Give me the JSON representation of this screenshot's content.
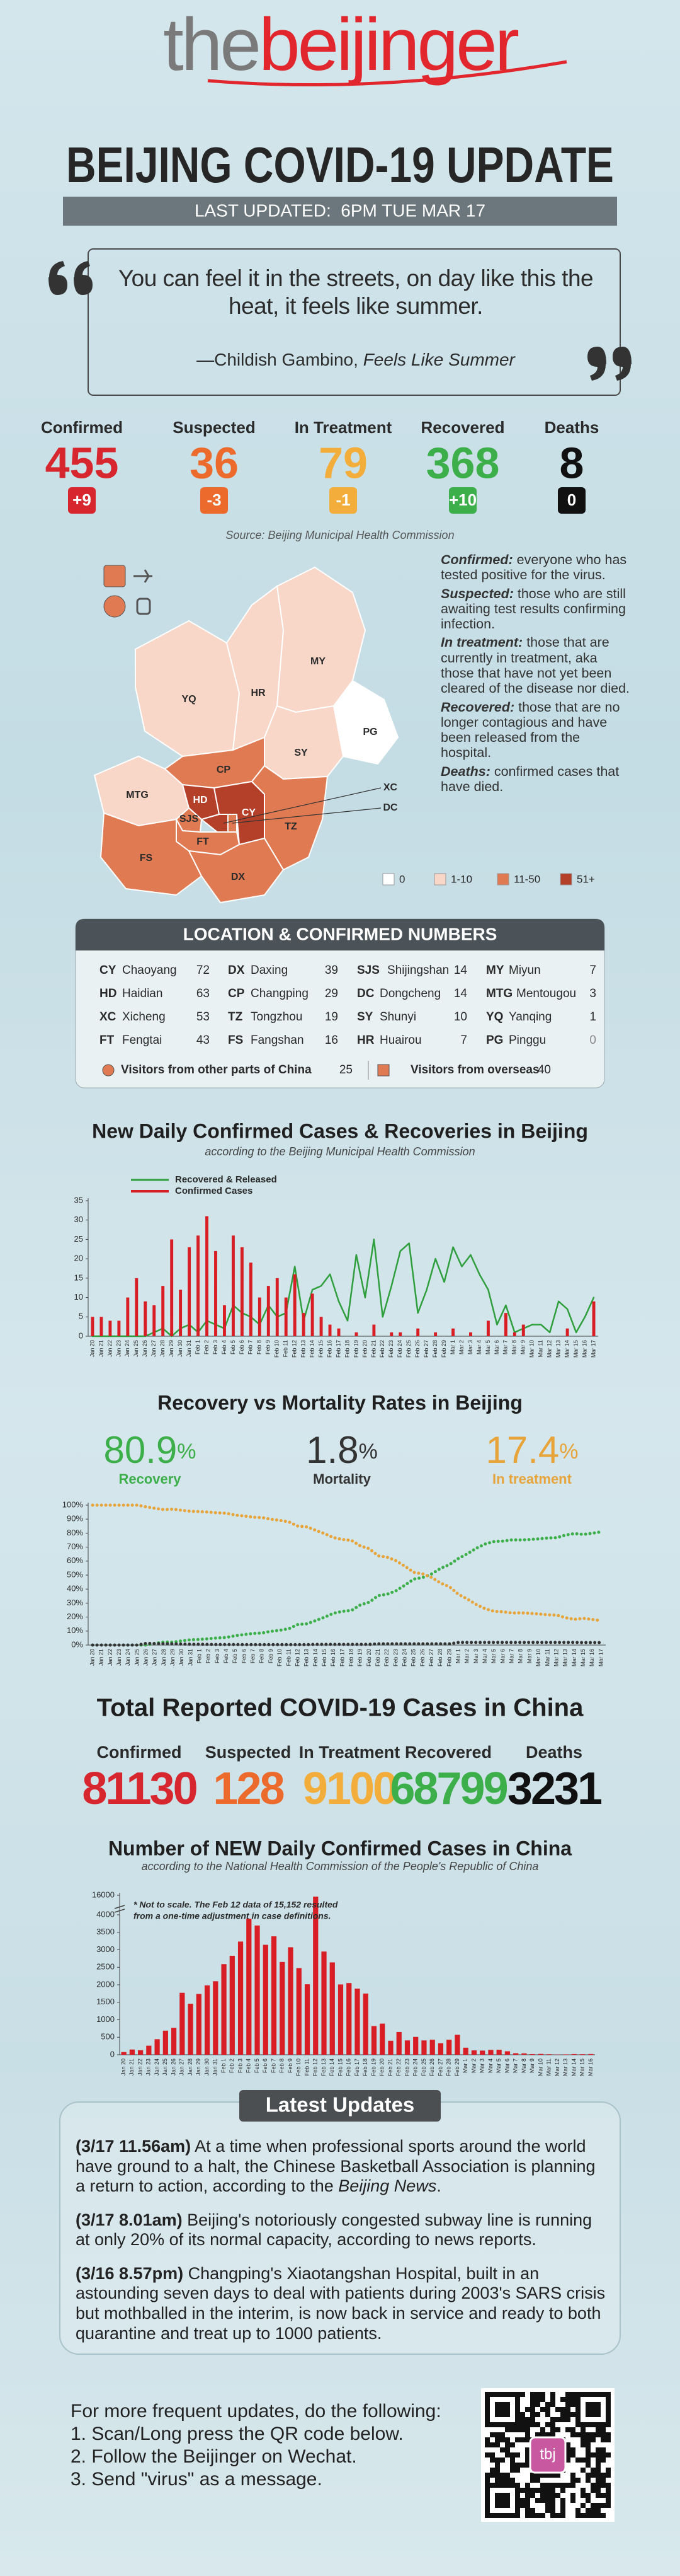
{
  "header": {
    "logo_prefix": "the",
    "logo_main": "beijinger",
    "title": "BEIJING COVID-19 UPDATE",
    "last_updated": "LAST UPDATED:  6PM TUE MAR 17"
  },
  "quote": {
    "text": "You can feel it in the streets, on day like this the heat, it feels like summer.",
    "attribution": "—Childish Gambino, ",
    "work": "Feels Like Summer"
  },
  "beijing_stats": [
    {
      "label": "Confirmed",
      "value": 455,
      "change": "+9",
      "color": "#d7262e",
      "badge": "#d7262e"
    },
    {
      "label": "Suspected",
      "value": 36,
      "change": "-3",
      "color": "#ec6a2c",
      "badge": "#ec6a2c"
    },
    {
      "label": "In Treatment",
      "value": 79,
      "change": "-1",
      "color": "#f2ad3a",
      "badge": "#f2ad3a"
    },
    {
      "label": "Recovered",
      "value": 368,
      "change": "+10",
      "color": "#3cae4a",
      "badge": "#3cae4a"
    },
    {
      "label": "Deaths",
      "value": 8,
      "change": "0",
      "color": "#111111",
      "badge": "#111111"
    }
  ],
  "source": "Source: Beijing Municipal Health Commission",
  "map": {
    "districts": [
      {
        "code": "YQ",
        "color": "#f8d6c8"
      },
      {
        "code": "HR",
        "color": "#f8d6c8"
      },
      {
        "code": "MY",
        "color": "#f8d6c8"
      },
      {
        "code": "PG",
        "color": "#ffffff"
      },
      {
        "code": "SY",
        "color": "#f8d6c8"
      },
      {
        "code": "CP",
        "color": "#e07a52"
      },
      {
        "code": "MTG",
        "color": "#f8d6c8"
      },
      {
        "code": "HD",
        "color": "#b4402a"
      },
      {
        "code": "SJS",
        "color": "#e07a52"
      },
      {
        "code": "XC",
        "color": "#b4402a"
      },
      {
        "code": "DC",
        "color": "#e07a52"
      },
      {
        "code": "CY",
        "color": "#b4402a"
      },
      {
        "code": "FT",
        "color": "#e07a52"
      },
      {
        "code": "TZ",
        "color": "#e07a52"
      },
      {
        "code": "FS",
        "color": "#e07a52"
      },
      {
        "code": "DX",
        "color": "#e07a52"
      }
    ],
    "legend": [
      {
        "label": "0",
        "color": "#ffffff"
      },
      {
        "label": "1-10",
        "color": "#f8d6c8"
      },
      {
        "label": "11-50",
        "color": "#e07a52"
      },
      {
        "label": "51+",
        "color": "#b4402a"
      }
    ]
  },
  "definitions": [
    {
      "term": "Confirmed:",
      "text": "everyone who has tested positive for the virus."
    },
    {
      "term": "Suspected:",
      "text": "those who are still awaiting test results confirming infection."
    },
    {
      "term": "In treatment:",
      "text": "those that are currently in treatment, aka those that have not yet been cleared of the disease nor died."
    },
    {
      "term": "Recovered:",
      "text": "those that are no longer contagious and have been released from the hospital."
    },
    {
      "term": "Deaths:",
      "text": "confirmed cases that have died."
    }
  ],
  "locations": {
    "title": "LOCATION & CONFIRMED NUMBERS",
    "rows": [
      {
        "code": "CY",
        "name": "Chaoyang",
        "value": 72
      },
      {
        "code": "HD",
        "name": "Haidian",
        "value": 63
      },
      {
        "code": "XC",
        "name": "Xicheng",
        "value": 53
      },
      {
        "code": "FT",
        "name": "Fengtai",
        "value": 43
      },
      {
        "code": "DX",
        "name": "Daxing",
        "value": 39
      },
      {
        "code": "CP",
        "name": "Changping",
        "value": 29
      },
      {
        "code": "TZ",
        "name": "Tongzhou",
        "value": 19
      },
      {
        "code": "FS",
        "name": "Fangshan",
        "value": 16
      },
      {
        "code": "SJS",
        "name": "Shijingshan",
        "value": 14
      },
      {
        "code": "DC",
        "name": "Dongcheng",
        "value": 14
      },
      {
        "code": "SY",
        "name": "Shunyi",
        "value": 10
      },
      {
        "code": "HR",
        "name": "Huairou",
        "value": 7
      },
      {
        "code": "MY",
        "name": "Miyun",
        "value": 7
      },
      {
        "code": "MTG",
        "name": "Mentougou",
        "value": 3
      },
      {
        "code": "YQ",
        "name": "Yanqing",
        "value": 1
      },
      {
        "code": "PG",
        "name": "Pinggu",
        "value": 0
      }
    ],
    "other_provinces": {
      "label": "Visitors from other parts of China",
      "value": 25
    },
    "overseas": {
      "label": "Visitors from overseas",
      "value": 40
    }
  },
  "chart_data": [
    {
      "type": "bar",
      "title": "New Daily Confirmed Cases & Recoveries in Beijing",
      "subtitle": "according to the Beijing Municipal Health Commission",
      "categories": [
        "Jan 20",
        "Jan 21",
        "Jan 22",
        "Jan 23",
        "Jan 24",
        "Jan 25",
        "Jan 26",
        "Jan 27",
        "Jan 28",
        "Jan 29",
        "Jan 30",
        "Jan 31",
        "Feb 1",
        "Feb 2",
        "Feb 3",
        "Feb 4",
        "Feb 5",
        "Feb 6",
        "Feb 7",
        "Feb 8",
        "Feb 9",
        "Feb 10",
        "Feb 11",
        "Feb 12",
        "Feb 13",
        "Feb 14",
        "Feb 15",
        "Feb 16",
        "Feb 17",
        "Feb 18",
        "Feb 19",
        "Feb 20",
        "Feb 21",
        "Feb 22",
        "Feb 23",
        "Feb 24",
        "Feb 25",
        "Feb 26",
        "Feb 27",
        "Feb 28",
        "Feb 29",
        "Mar 1",
        "Mar 2",
        "Mar 3",
        "Mar 4",
        "Mar 5",
        "Mar 6",
        "Mar 7",
        "Mar 8",
        "Mar 9",
        "Mar 10",
        "Mar 11",
        "Mar 12",
        "Mar 13",
        "Mar 14",
        "Mar 15",
        "Mar 16",
        "Mar 17"
      ],
      "series": [
        {
          "name": "Recovered & Released",
          "type": "line",
          "color": "#2f9e3c",
          "values": [
            0,
            0,
            0,
            0,
            0,
            0,
            0,
            1,
            2,
            0,
            2,
            3,
            1,
            4,
            3,
            2,
            8,
            6,
            5,
            3,
            8,
            5,
            6,
            18,
            4,
            12,
            13,
            16,
            9,
            4,
            21,
            10,
            25,
            5,
            13,
            22,
            24,
            6,
            12,
            20,
            14,
            23,
            18,
            21,
            16,
            12,
            3,
            8,
            1,
            2,
            3,
            3,
            1,
            9,
            7,
            1,
            5,
            10
          ]
        },
        {
          "name": "Confirmed Cases",
          "color": "#d81e24",
          "values": [
            5,
            5,
            4,
            4,
            10,
            15,
            9,
            8,
            13,
            25,
            12,
            23,
            26,
            31,
            22,
            8,
            26,
            23,
            19,
            10,
            13,
            15,
            10,
            16,
            6,
            11,
            5,
            3,
            2,
            0,
            1,
            0,
            3,
            0,
            1,
            1,
            0,
            2,
            0,
            1,
            0,
            2,
            0,
            1,
            0,
            4,
            0,
            6,
            1,
            3,
            0,
            0,
            0,
            0,
            2,
            0,
            0,
            9
          ]
        }
      ],
      "ylim": [
        0,
        35
      ],
      "yticks": [
        0,
        5,
        10,
        15,
        20,
        25,
        30,
        35
      ],
      "grid": false
    },
    {
      "type": "line",
      "title": "Recovery vs Mortality Rates in Beijing",
      "latest_unit": "%",
      "categories": [
        "Jan 20",
        "Jan 21",
        "Jan 22",
        "Jan 23",
        "Jan 24",
        "Jan 25",
        "Jan 26",
        "Jan 27",
        "Jan 28",
        "Jan 29",
        "Jan 30",
        "Jan 31",
        "Feb 1",
        "Feb 2",
        "Feb 3",
        "Feb 4",
        "Feb 5",
        "Feb 6",
        "Feb 7",
        "Feb 8",
        "Feb 9",
        "Feb 10",
        "Feb 11",
        "Feb 12",
        "Feb 13",
        "Feb 14",
        "Feb 15",
        "Feb 16",
        "Feb 17",
        "Feb 18",
        "Feb 19",
        "Feb 20",
        "Feb 21",
        "Feb 22",
        "Feb 23",
        "Feb 24",
        "Feb 25",
        "Feb 26",
        "Feb 27",
        "Feb 28",
        "Feb 29",
        "Mar 1",
        "Mar 2",
        "Mar 3",
        "Mar 4",
        "Mar 5",
        "Mar 6",
        "Mar 7",
        "Mar 8",
        "Mar 9",
        "Mar 10",
        "Mar 11",
        "Mar 12",
        "Mar 13",
        "Mar 14",
        "Mar 15",
        "Mar 16",
        "Mar 17"
      ],
      "series": [
        {
          "name": "Recovery",
          "latest": 80.9,
          "color": "#3cae4a",
          "values": [
            0,
            0,
            0,
            0,
            0,
            0,
            0,
            1.2,
            2.2,
            2.0,
            3.0,
            3.8,
            4.0,
            4.5,
            5.1,
            5.4,
            6.7,
            7.5,
            8.3,
            8.6,
            9.8,
            10.6,
            11.7,
            14.7,
            15.2,
            17.5,
            19.9,
            22.7,
            24.1,
            24.7,
            28.7,
            30.6,
            35.3,
            36.3,
            38.8,
            42.8,
            47.1,
            48.3,
            50.8,
            54.8,
            57.5,
            61.9,
            65.2,
            69.2,
            72.2,
            74.0,
            74.3,
            75.2,
            75.1,
            75.4,
            75.9,
            76.5,
            76.7,
            78.6,
            79.7,
            79.1,
            79.9,
            80.9
          ]
        },
        {
          "name": "Mortality",
          "latest": 1.8,
          "color": "#333333",
          "values": [
            0,
            0,
            0,
            0,
            0,
            0,
            1.2,
            1.1,
            1.0,
            0.9,
            0.7,
            0.6,
            0.6,
            0.5,
            0.4,
            0.4,
            0.4,
            0.3,
            0.3,
            0.3,
            0.3,
            0.3,
            0.3,
            0.3,
            0.3,
            0.5,
            0.5,
            0.5,
            0.5,
            0.5,
            0.5,
            0.5,
            0.9,
            0.9,
            0.9,
            0.9,
            0.9,
            0.9,
            0.9,
            0.9,
            0.9,
            1.9,
            1.9,
            1.9,
            1.9,
            1.9,
            1.9,
            1.9,
            1.9,
            1.9,
            1.9,
            1.9,
            1.9,
            1.9,
            1.9,
            1.8,
            1.8,
            1.8
          ]
        },
        {
          "name": "In treatment",
          "latest": 17.4,
          "color": "#e7a43a",
          "values": [
            100,
            100,
            100,
            100,
            100,
            100,
            98.8,
            97.7,
            96.8,
            97.1,
            96.3,
            95.6,
            95.4,
            95.0,
            94.5,
            94.2,
            92.9,
            92.2,
            91.4,
            91.1,
            89.9,
            89.1,
            88.0,
            85.0,
            84.5,
            82.0,
            79.6,
            76.8,
            75.4,
            74.8,
            70.8,
            68.9,
            63.8,
            62.8,
            60.3,
            56.3,
            52.0,
            50.8,
            48.3,
            44.3,
            41.6,
            36.2,
            32.9,
            28.9,
            25.9,
            24.1,
            23.8,
            22.9,
            23.0,
            22.7,
            22.2,
            21.6,
            21.4,
            19.5,
            18.4,
            19.1,
            18.3,
            17.4
          ]
        }
      ],
      "ylim": [
        0,
        100
      ],
      "yticks": [
        {
          "value": 0,
          "label": "0%"
        },
        {
          "value": 10,
          "label": "10%"
        },
        {
          "value": 20,
          "label": "20%"
        },
        {
          "value": 30,
          "label": "30%"
        },
        {
          "value": 40,
          "label": "40%"
        },
        {
          "value": 50,
          "label": "50%"
        },
        {
          "value": 60,
          "label": "60%"
        },
        {
          "value": 70,
          "label": "70%"
        },
        {
          "value": 80,
          "label": "80%"
        },
        {
          "value": 90,
          "label": "90%"
        },
        {
          "value": 100,
          "label": "100%"
        }
      ],
      "grid": false
    },
    {
      "type": "bar",
      "title": "Number of NEW Daily Confirmed Cases in China",
      "subtitle": "according to the National Health Commission of the People's Republic of China",
      "annotation": [
        "* Not to scale. The Feb 12 data of 15,152 resulted",
        "from a one-time adjustment in case definitions."
      ],
      "categories": [
        "Jan 20",
        "Jan 21",
        "Jan 22",
        "Jan 23",
        "Jan 24",
        "Jan 25",
        "Jan 26",
        "Jan 27",
        "Jan 28",
        "Jan 29",
        "Jan 30",
        "Jan 31",
        "Feb 1",
        "Feb 2",
        "Feb 3",
        "Feb 4",
        "Feb 5",
        "Feb 6",
        "Feb 7",
        "Feb 8",
        "Feb 9",
        "Feb 10",
        "Feb 11",
        "Feb 12",
        "Feb 13",
        "Feb 14",
        "Feb 15",
        "Feb 16",
        "Feb 17",
        "Feb 18",
        "Feb 19",
        "Feb 20",
        "Feb 21",
        "Feb 22",
        "Feb 23",
        "Feb 24",
        "Feb 25",
        "Feb 26",
        "Feb 27",
        "Feb 28",
        "Feb 29",
        "Mar 1",
        "Mar 2",
        "Mar 3",
        "Mar 4",
        "Mar 5",
        "Mar 6",
        "Mar 7",
        "Mar 8",
        "Mar 9",
        "Mar 10",
        "Mar 11",
        "Mar 12",
        "Mar 13",
        "Mar 14",
        "Mar 15",
        "Mar 16"
      ],
      "values": [
        77,
        149,
        131,
        259,
        444,
        688,
        769,
        1771,
        1459,
        1737,
        1982,
        2102,
        2590,
        2829,
        3235,
        3887,
        3694,
        3143,
        3385,
        2652,
        3073,
        2478,
        2015,
        15152,
        2950,
        2640,
        2010,
        2050,
        1890,
        1750,
        820,
        890,
        400,
        650,
        410,
        510,
        410,
        430,
        330,
        430,
        570,
        202,
        125,
        119,
        139,
        143,
        99,
        44,
        40,
        19,
        24,
        15,
        8,
        11,
        20,
        16,
        21
      ],
      "color": "#d81e24",
      "ylim": [
        0,
        16000
      ],
      "yticks": [
        0,
        500,
        1000,
        1500,
        2000,
        2500,
        3000,
        3500,
        4000,
        16000
      ],
      "grid": false
    }
  ],
  "china_totals": {
    "title": "Total Reported COVID-19 Cases in China",
    "stats": [
      {
        "label": "Confirmed",
        "value": 81130,
        "color": "#d7262e"
      },
      {
        "label": "Suspected",
        "value": 128,
        "color": "#ec6a2c"
      },
      {
        "label": "In Treatment",
        "value": 9100,
        "color": "#f2ad3a"
      },
      {
        "label": "Recovered",
        "value": 68799,
        "color": "#3cae4a"
      },
      {
        "label": "Deaths",
        "value": 3231,
        "color": "#111111"
      }
    ]
  },
  "updates": {
    "title": "Latest Updates",
    "items": [
      {
        "time": "(3/17 11.56am)",
        "text": " At a time when professional sports around the world have ground to a halt, the Chinese Basketball Association is planning a return to action, according to the ",
        "source": "Beijing News",
        "end": "."
      },
      {
        "time": "(3/17 8.01am)",
        "text": " Beijing's notoriously congested subway line is running at only 20% of its normal capacity, according to news reports."
      },
      {
        "time": "(3/16 8.57pm)",
        "text": " Changping's Xiaotangshan Hospital, built in an astounding seven days to deal with patients during 2003's SARS crisis but mothballed in the interim, is now back in service and ready to both quarantine and treat up to 1000 patients."
      }
    ]
  },
  "footer": {
    "intro": "For more frequent updates, do the following:",
    "steps": [
      "1. Scan/Long press the QR code below.",
      "2. Follow the Beijinger on Wechat.",
      "3. Send \"virus\" as a message."
    ],
    "qr_text": "tbj"
  }
}
